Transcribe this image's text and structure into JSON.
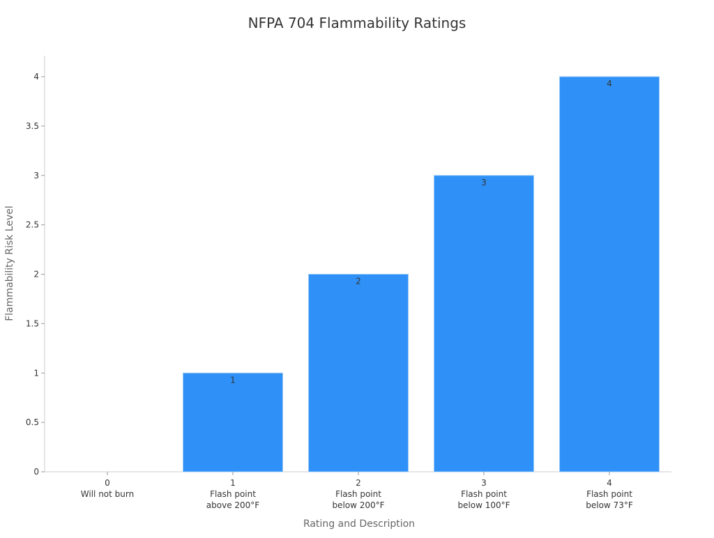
{
  "chart_data": {
    "type": "bar",
    "title": "NFPA 704 Flammability Ratings",
    "xlabel": "Rating and Description",
    "ylabel": "Flammability Risk Level",
    "categories": [
      [
        "0",
        "Will not burn"
      ],
      [
        "1",
        "Flash point",
        "above 200°F"
      ],
      [
        "2",
        "Flash point",
        "below 200°F"
      ],
      [
        "3",
        "Flash point",
        "below 100°F"
      ],
      [
        "4",
        "Flash point",
        "below 73°F"
      ]
    ],
    "values": [
      0,
      1,
      2,
      3,
      4
    ],
    "data_labels": [
      "",
      "1",
      "2",
      "3",
      "4"
    ],
    "ylim": [
      0,
      4.2
    ],
    "yticks": [
      "0",
      "0.5",
      "1",
      "1.5",
      "2",
      "2.5",
      "3",
      "3.5",
      "4"
    ],
    "grid": false,
    "bar_color": "#2f91f7"
  }
}
